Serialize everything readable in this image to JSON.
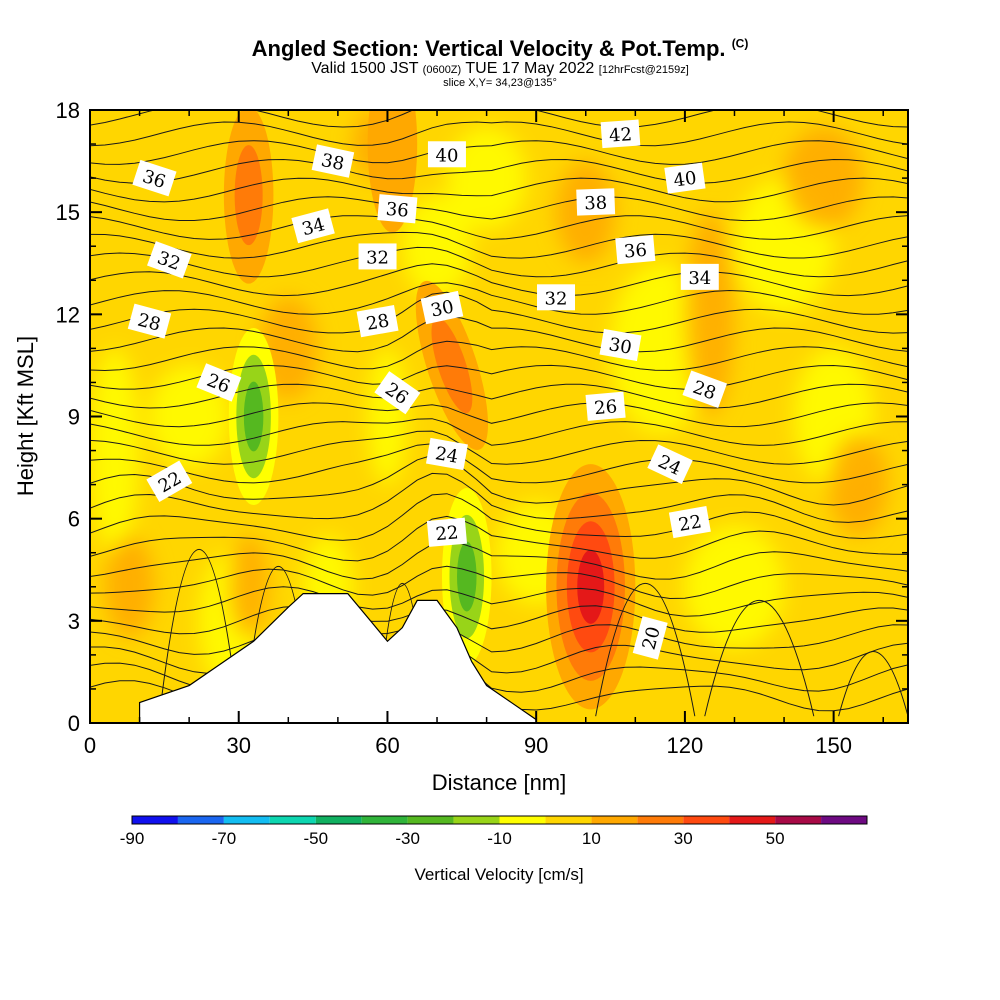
{
  "chart_data": {
    "type": "heatmap",
    "title": "Angled Section: Vertical Velocity & Pot.Temp.",
    "title_unit": "(C)",
    "subtitle_main": "Valid 1500 JST",
    "subtitle_utc": "(0600Z)",
    "subtitle_date": "TUE 17 May 2022",
    "subtitle_fcst": "[12hrFcst@2159z]",
    "slice_label": "slice X,Y= 34,23@135°",
    "xlabel": "Distance [nm]",
    "ylabel": "Height [Kft MSL]",
    "xlim": [
      0,
      165
    ],
    "ylim": [
      0,
      18
    ],
    "xticks": [
      0,
      30,
      60,
      90,
      120,
      150
    ],
    "yticks": [
      0,
      3,
      6,
      9,
      12,
      15,
      18
    ],
    "colorbar": {
      "label": "Vertical Velocity [cm/s]",
      "bins": [
        -90,
        -80,
        -70,
        -60,
        -50,
        -40,
        -30,
        -20,
        -10,
        0,
        10,
        20,
        30,
        40,
        50,
        60
      ],
      "tick_labels": [
        -90,
        -70,
        -50,
        -30,
        -10,
        10,
        30,
        50
      ],
      "colors": [
        "#1010ee",
        "#1a66f0",
        "#13bdf2",
        "#0dd6b0",
        "#10b060",
        "#30b43a",
        "#55b820",
        "#98d418",
        "#ffff00",
        "#ffd600",
        "#ffa800",
        "#ff7b08",
        "#ff4a10",
        "#e41818",
        "#a80a46",
        "#6e0a82"
      ]
    },
    "velocity_features": [
      {
        "kind": "updraft core",
        "x": 101,
        "height": 4,
        "max_cms": 50
      },
      {
        "kind": "updraft",
        "x": 73,
        "height": 10.5,
        "max_cms": 30
      },
      {
        "kind": "updraft",
        "x": 32,
        "height": 15.5,
        "max_cms": 25
      },
      {
        "kind": "updraft",
        "x": 61,
        "height": 17,
        "max_cms": 20
      },
      {
        "kind": "downdraft",
        "x": 33,
        "height": 9,
        "min_cms": -30
      },
      {
        "kind": "downdraft",
        "x": 76,
        "height": 4.3,
        "min_cms": -30
      }
    ],
    "terrain": [
      [
        10,
        0.6
      ],
      [
        20,
        1.1
      ],
      [
        25,
        1.6
      ],
      [
        33,
        2.4
      ],
      [
        40,
        3.4
      ],
      [
        43,
        3.8
      ],
      [
        52,
        3.8
      ],
      [
        56,
        3.1
      ],
      [
        60,
        2.4
      ],
      [
        63,
        2.8
      ],
      [
        66,
        3.6
      ],
      [
        70,
        3.6
      ],
      [
        74,
        2.8
      ],
      [
        77,
        1.8
      ],
      [
        80,
        1.1
      ],
      [
        85,
        0.6
      ],
      [
        90,
        0.1
      ]
    ],
    "pot_temp_labels": [
      "42",
      "40",
      "38",
      "36",
      "34",
      "32",
      "30",
      "28",
      "26",
      "24",
      "22",
      "20"
    ],
    "contour_labels": [
      {
        "t": "42",
        "x": 107,
        "y": 17.3,
        "r": -4
      },
      {
        "t": "40",
        "x": 72,
        "y": 16.7,
        "r": 0
      },
      {
        "t": "40",
        "x": 120,
        "y": 16.0,
        "r": -8
      },
      {
        "t": "38",
        "x": 49,
        "y": 16.5,
        "r": 12
      },
      {
        "t": "38",
        "x": 102,
        "y": 15.3,
        "r": -2
      },
      {
        "t": "36",
        "x": 13,
        "y": 16.0,
        "r": 18
      },
      {
        "t": "36",
        "x": 62,
        "y": 15.1,
        "r": 5
      },
      {
        "t": "36",
        "x": 110,
        "y": 13.9,
        "r": -5
      },
      {
        "t": "34",
        "x": 45,
        "y": 14.6,
        "r": -15
      },
      {
        "t": "34",
        "x": 123,
        "y": 13.1,
        "r": 0
      },
      {
        "t": "32",
        "x": 16,
        "y": 13.6,
        "r": 20
      },
      {
        "t": "32",
        "x": 58,
        "y": 13.7,
        "r": 0
      },
      {
        "t": "32",
        "x": 94,
        "y": 12.5,
        "r": 0
      },
      {
        "t": "30",
        "x": 71,
        "y": 12.2,
        "r": -12
      },
      {
        "t": "30",
        "x": 107,
        "y": 11.1,
        "r": 10
      },
      {
        "t": "28",
        "x": 12,
        "y": 11.8,
        "r": 15
      },
      {
        "t": "28",
        "x": 58,
        "y": 11.8,
        "r": -10
      },
      {
        "t": "28",
        "x": 124,
        "y": 9.8,
        "r": 20
      },
      {
        "t": "26",
        "x": 26,
        "y": 10.0,
        "r": 22
      },
      {
        "t": "26",
        "x": 62,
        "y": 9.7,
        "r": 35
      },
      {
        "t": "26",
        "x": 104,
        "y": 9.3,
        "r": -5
      },
      {
        "t": "24",
        "x": 72,
        "y": 7.9,
        "r": 10
      },
      {
        "t": "24",
        "x": 117,
        "y": 7.6,
        "r": 25
      },
      {
        "t": "22",
        "x": 16,
        "y": 7.1,
        "r": -30
      },
      {
        "t": "22",
        "x": 72,
        "y": 5.6,
        "r": -5
      },
      {
        "t": "22",
        "x": 121,
        "y": 5.9,
        "r": -10
      },
      {
        "t": "20",
        "x": 113,
        "y": 2.5,
        "r": -75
      }
    ]
  }
}
